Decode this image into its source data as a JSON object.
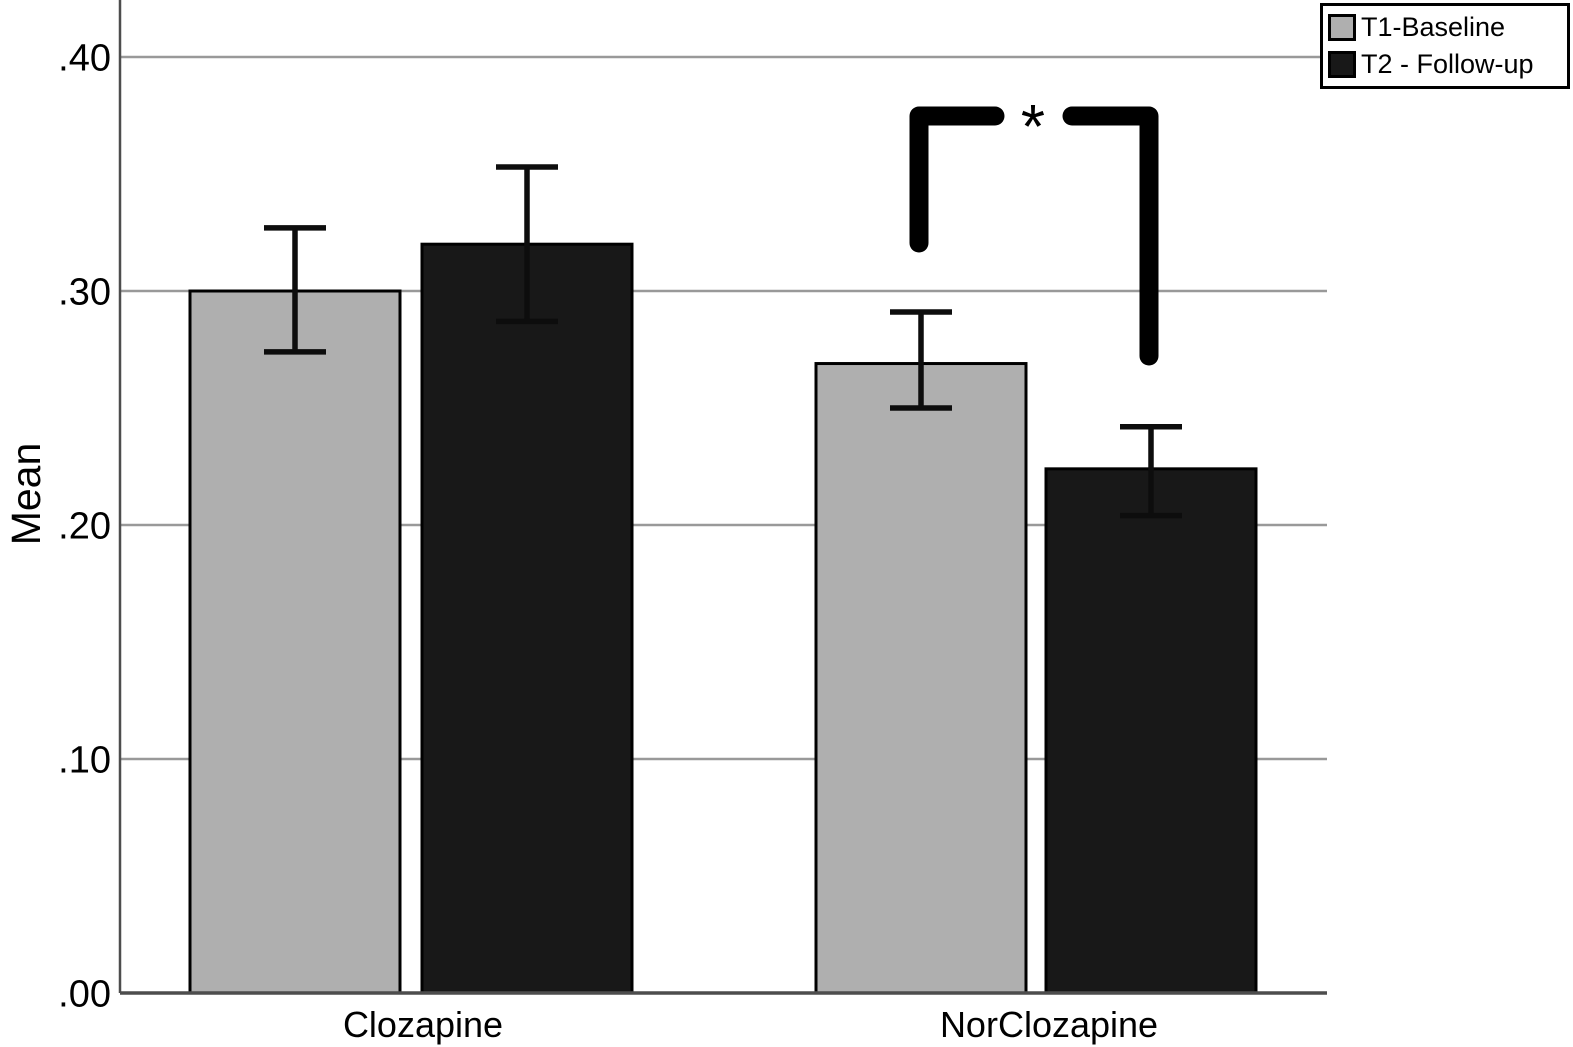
{
  "figure": {
    "kind": "grouped bar chart with error bars (SPSS style)"
  },
  "chart_data": {
    "type": "bar",
    "title": "",
    "xlabel": "",
    "ylabel": "Mean",
    "categories": [
      "Clozapine",
      "NorClozapine"
    ],
    "series": [
      {
        "name": "T1-Baseline",
        "color": "#AFAFAF",
        "values": [
          0.3,
          0.269
        ],
        "errors": [
          {
            "low": 0.274,
            "high": 0.327
          },
          {
            "low": 0.25,
            "high": 0.291
          }
        ]
      },
      {
        "name": "T2 - Follow-up",
        "color": "#181818",
        "values": [
          0.32,
          0.224
        ],
        "errors": [
          {
            "low": 0.287,
            "high": 0.353
          },
          {
            "low": 0.204,
            "high": 0.242
          }
        ]
      }
    ],
    "yticks": [
      {
        "value": 0.0,
        "label": ".00"
      },
      {
        "value": 0.1,
        "label": ".10"
      },
      {
        "value": 0.2,
        "label": ".20"
      },
      {
        "value": 0.3,
        "label": ".30"
      },
      {
        "value": 0.4,
        "label": ".40"
      }
    ],
    "ylim": [
      0,
      0.424
    ],
    "grid": "horizontal",
    "legend_position": "top-right",
    "annotations": [
      {
        "type": "significance-bracket",
        "label": "*",
        "category": "NorClozapine",
        "between": [
          "T1-Baseline",
          "T2 - Follow-up"
        ]
      }
    ],
    "colors": {
      "grid": "#999999",
      "axis": "#4D4D4D",
      "bar_border": "#000000",
      "error_bar": "#0D0D0D",
      "bracket": "#000000",
      "background": "#FFFFFF"
    }
  }
}
